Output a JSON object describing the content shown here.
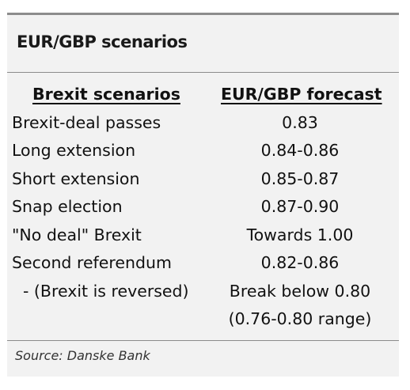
{
  "title": "EUR/GBP scenarios",
  "table": {
    "headers": [
      "Brexit scenarios",
      "EUR/GBP forecast"
    ],
    "rows": [
      {
        "scenario": "Brexit-deal passes",
        "forecast": "0.83"
      },
      {
        "scenario": "Long extension",
        "forecast": "0.84-0.86"
      },
      {
        "scenario": "Short extension",
        "forecast": "0.85-0.87"
      },
      {
        "scenario": "Snap election",
        "forecast": "0.87-0.90"
      },
      {
        "scenario": "\"No deal\" Brexit",
        "forecast": "Towards 1.00"
      },
      {
        "scenario": "Second referendum",
        "forecast": "0.82-0.86"
      },
      {
        "scenario": " - (Brexit is reversed)",
        "forecast": "Break below 0.80"
      },
      {
        "scenario": "",
        "forecast": "(0.76-0.80 range)"
      }
    ]
  },
  "source": "Source: Danske Bank",
  "colors": {
    "panel_background": "#f2f2f2",
    "rule": "#8c8c8c",
    "text": "#111111"
  }
}
